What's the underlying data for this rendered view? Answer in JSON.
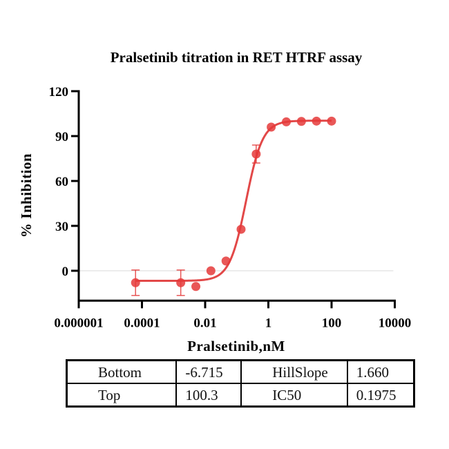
{
  "chart_data": {
    "type": "scatter",
    "title": "Pralsetinib  titration in RET HTRF assay",
    "xlabel": "Pralsetinib,nM",
    "ylabel": "% Inhibition",
    "xscale": "log10",
    "xlim": [
      1e-06,
      10000
    ],
    "ylim": [
      -20,
      120
    ],
    "xticks": [
      {
        "value": 1e-06,
        "label": "0.000001"
      },
      {
        "value": 0.0001,
        "label": "0.0001"
      },
      {
        "value": 0.01,
        "label": "0.01"
      },
      {
        "value": 1,
        "label": "1"
      },
      {
        "value": 100,
        "label": "100"
      },
      {
        "value": 10000,
        "label": "10000"
      }
    ],
    "yticks": [
      {
        "value": 0,
        "label": "0"
      },
      {
        "value": 30,
        "label": "30"
      },
      {
        "value": 60,
        "label": "60"
      },
      {
        "value": 90,
        "label": "90"
      },
      {
        "value": 120,
        "label": "120"
      }
    ],
    "gridlines": [
      0
    ],
    "series": [
      {
        "name": "Pralsetinib",
        "color": "#e53939",
        "points": [
          {
            "x": 6.27e-05,
            "y": -8.0,
            "err": 8.5
          },
          {
            "x": 0.00169,
            "y": -8.0,
            "err": 8.5
          },
          {
            "x": 0.00508,
            "y": -10.5
          },
          {
            "x": 0.0152,
            "y": 0.0
          },
          {
            "x": 0.0457,
            "y": 6.5
          },
          {
            "x": 0.137,
            "y": 27.7
          },
          {
            "x": 0.412,
            "y": 78.0,
            "err": 6.0
          },
          {
            "x": 1.23,
            "y": 96.0
          },
          {
            "x": 3.7,
            "y": 99.5
          },
          {
            "x": 11.1,
            "y": 99.8
          },
          {
            "x": 33.3,
            "y": 100.0
          },
          {
            "x": 100,
            "y": 100.0
          }
        ]
      }
    ],
    "fit": {
      "model": "four-parameter logistic",
      "color": "#e24848",
      "bottom": -6.715,
      "top": 100.3,
      "ic50": 0.1975,
      "hillslope": 1.66,
      "x_range": [
        6.27e-05,
        100
      ]
    }
  },
  "params_table": {
    "rows": [
      [
        "Bottom",
        "-6.715",
        "HillSlope",
        "1.660"
      ],
      [
        "Top",
        "100.3",
        "IC50",
        "0.1975"
      ]
    ]
  }
}
